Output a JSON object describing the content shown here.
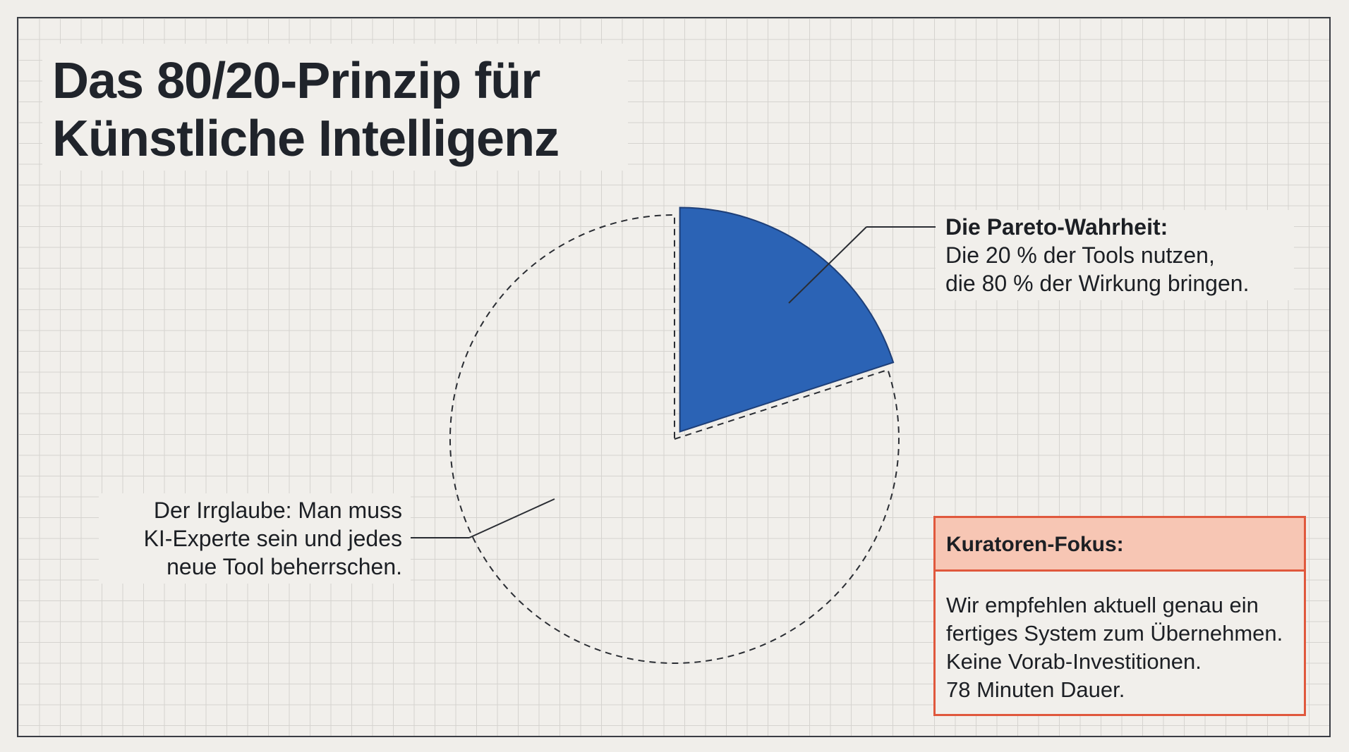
{
  "title": {
    "line1": "Das 80/20-Prinzip für",
    "line2": "Künstliche Intelligenz"
  },
  "chart_data": {
    "type": "pie",
    "slices": [
      {
        "label": "Die Pareto-Wahrheit",
        "value": 20,
        "style": "filled",
        "color": "#2b63b5"
      },
      {
        "label": "Der Irrglaube",
        "value": 80,
        "style": "dashed-outline",
        "color": "#f1efeb"
      }
    ],
    "start_angle_deg": 0,
    "direction": "clockwise"
  },
  "annotations": {
    "pareto": {
      "heading": "Die Pareto-Wahrheit:",
      "line1": "Die 20 % der Tools nutzen,",
      "line2": "die 80 % der Wirkung bringen."
    },
    "myth": {
      "line1": "Der Irrglaube: Man muss",
      "line2": "KI-Experte sein und jedes",
      "line3": "neue Tool beherrschen."
    }
  },
  "focus_box": {
    "heading": "Kuratoren-Fokus:",
    "lines": [
      "Wir empfehlen aktuell genau ein",
      "fertiges System zum Übernehmen.",
      "Keine Vorab-Investitionen.",
      "78 Minuten Dauer."
    ]
  },
  "colors": {
    "accent_blue": "#2b63b5",
    "focus_border": "#e0583d",
    "focus_header_bg": "#f7c6b4",
    "text": "#1c1f24"
  }
}
